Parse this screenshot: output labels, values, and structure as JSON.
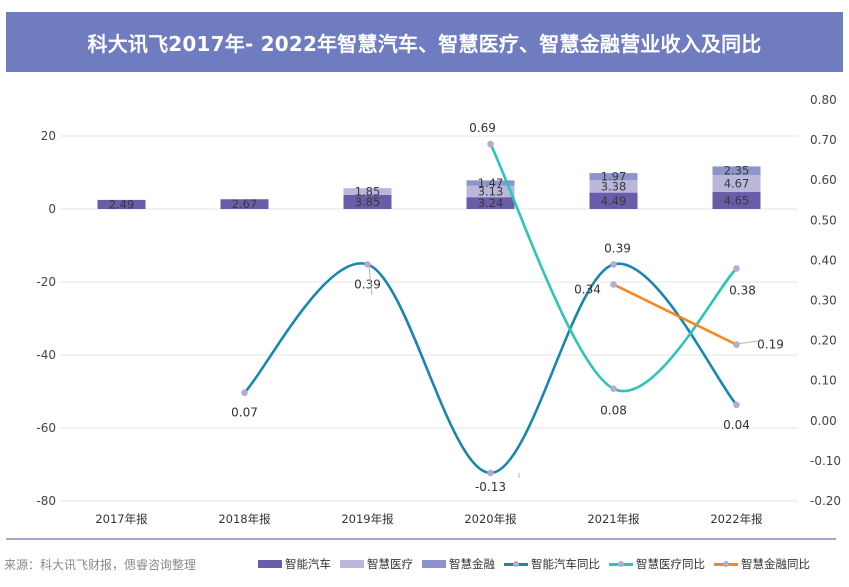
{
  "title": "科大讯飞2017年- 2022年智慧汽车、智慧医疗、智慧金融营业收入及同比",
  "source": "来源：科大讯飞财报，偲睿咨询整理",
  "colors": {
    "title_bg": "#6f7cc0",
    "auto": "#6a5ca8",
    "medical": "#b9b7da",
    "finance": "#8c94c9",
    "auto_yoy": "#1a86b0",
    "medical_yoy": "#2ec4b8",
    "finance_yoy": "#f5871f",
    "marker": "#b6a9d2"
  },
  "chart_data": {
    "type": "bar",
    "categories": [
      "2017年报",
      "2018年报",
      "2019年报",
      "2020年报",
      "2021年报",
      "2022年报"
    ],
    "y_left": {
      "min": -80,
      "max": 20,
      "ticks": [
        20,
        0,
        -20,
        -40,
        -60,
        -80
      ]
    },
    "y_right": {
      "min": -0.2,
      "max": 0.8,
      "ticks": [
        "0.80",
        "0.70",
        "0.60",
        "0.50",
        "0.40",
        "0.30",
        "0.20",
        "0.10",
        "0.00",
        "-0.10",
        "-0.20"
      ]
    },
    "bar_series": [
      {
        "name": "智能汽车",
        "values": [
          2.49,
          2.67,
          3.85,
          3.24,
          4.49,
          4.65
        ],
        "labels": [
          "2.49",
          "2.67",
          "3.85",
          "3.24",
          "4.49",
          "4.65"
        ]
      },
      {
        "name": "智慧医疗",
        "values": [
          0,
          0,
          1.85,
          3.13,
          3.38,
          4.67
        ],
        "labels": [
          "",
          "",
          "1.85",
          "3.13",
          "3.38",
          "4.67"
        ]
      },
      {
        "name": "智慧金融",
        "values": [
          0,
          0,
          0,
          1.47,
          1.97,
          2.35
        ],
        "labels": [
          "",
          "",
          "",
          "1.47",
          "1.97",
          "2.35"
        ]
      }
    ],
    "line_series": [
      {
        "name": "智能汽车同比",
        "values": [
          null,
          0.07,
          0.39,
          -0.13,
          0.39,
          0.04
        ],
        "labels": [
          "",
          "0.07",
          "0.39",
          "-0.13",
          "0.39",
          "0.04"
        ]
      },
      {
        "name": "智慧医疗同比",
        "values": [
          null,
          null,
          null,
          0.69,
          0.08,
          0.38
        ],
        "labels": [
          "",
          "",
          "",
          "0.69",
          "0.08",
          "0.38"
        ]
      },
      {
        "name": "智慧金融同比",
        "values": [
          null,
          null,
          null,
          null,
          0.34,
          0.19
        ],
        "labels": [
          "",
          "",
          "",
          "",
          "0.34",
          "0.19"
        ]
      }
    ],
    "legend_position": "bottom",
    "grid": true
  }
}
